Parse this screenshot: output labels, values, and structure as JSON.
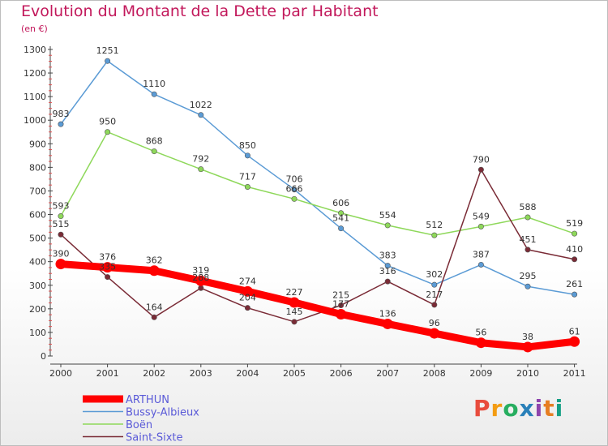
{
  "header": {
    "title": "Evolution du Montant de la Dette par Habitant",
    "subtitle": "(en €)"
  },
  "logo": {
    "text": "Proxiti",
    "colors": [
      "#e84c3d",
      "#f39c12",
      "#27ae60",
      "#2980b9",
      "#8e44ad",
      "#e67e22",
      "#16a085"
    ]
  },
  "chart_data": {
    "type": "line",
    "title": "Evolution du Montant de la Dette par Habitant",
    "subtitle": "(en €)",
    "x": [
      "2000",
      "2001",
      "2002",
      "2003",
      "2004",
      "2005",
      "2006",
      "2007",
      "2008",
      "2009",
      "2010",
      "2011"
    ],
    "ylim": [
      0,
      1300
    ],
    "yticks": [
      0,
      100,
      200,
      300,
      400,
      500,
      600,
      700,
      800,
      900,
      1000,
      1100,
      1200,
      1300
    ],
    "grid": false,
    "legend_position": "bottom-left",
    "series": [
      {
        "name": "Bussy-Albieux",
        "color": "#5b9bd5",
        "values": [
          983,
          1251,
          1110,
          1022,
          850,
          706,
          541,
          383,
          302,
          387,
          295,
          261
        ]
      },
      {
        "name": "Boën",
        "color": "#8ed85a",
        "values": [
          593,
          950,
          868,
          792,
          717,
          666,
          606,
          554,
          512,
          549,
          588,
          519
        ]
      },
      {
        "name": "Saint-Sixte",
        "color": "#7a2b36",
        "values": [
          515,
          335,
          164,
          288,
          204,
          145,
          215,
          316,
          217,
          790,
          451,
          410
        ]
      },
      {
        "name": "ARTHUN",
        "color": "#ff0000",
        "values": [
          390,
          376,
          362,
          319,
          274,
          227,
          177,
          136,
          96,
          56,
          38,
          61
        ]
      }
    ],
    "legend_order": [
      "ARTHUN",
      "Bussy-Albieux",
      "Boën",
      "Saint-Sixte"
    ]
  }
}
